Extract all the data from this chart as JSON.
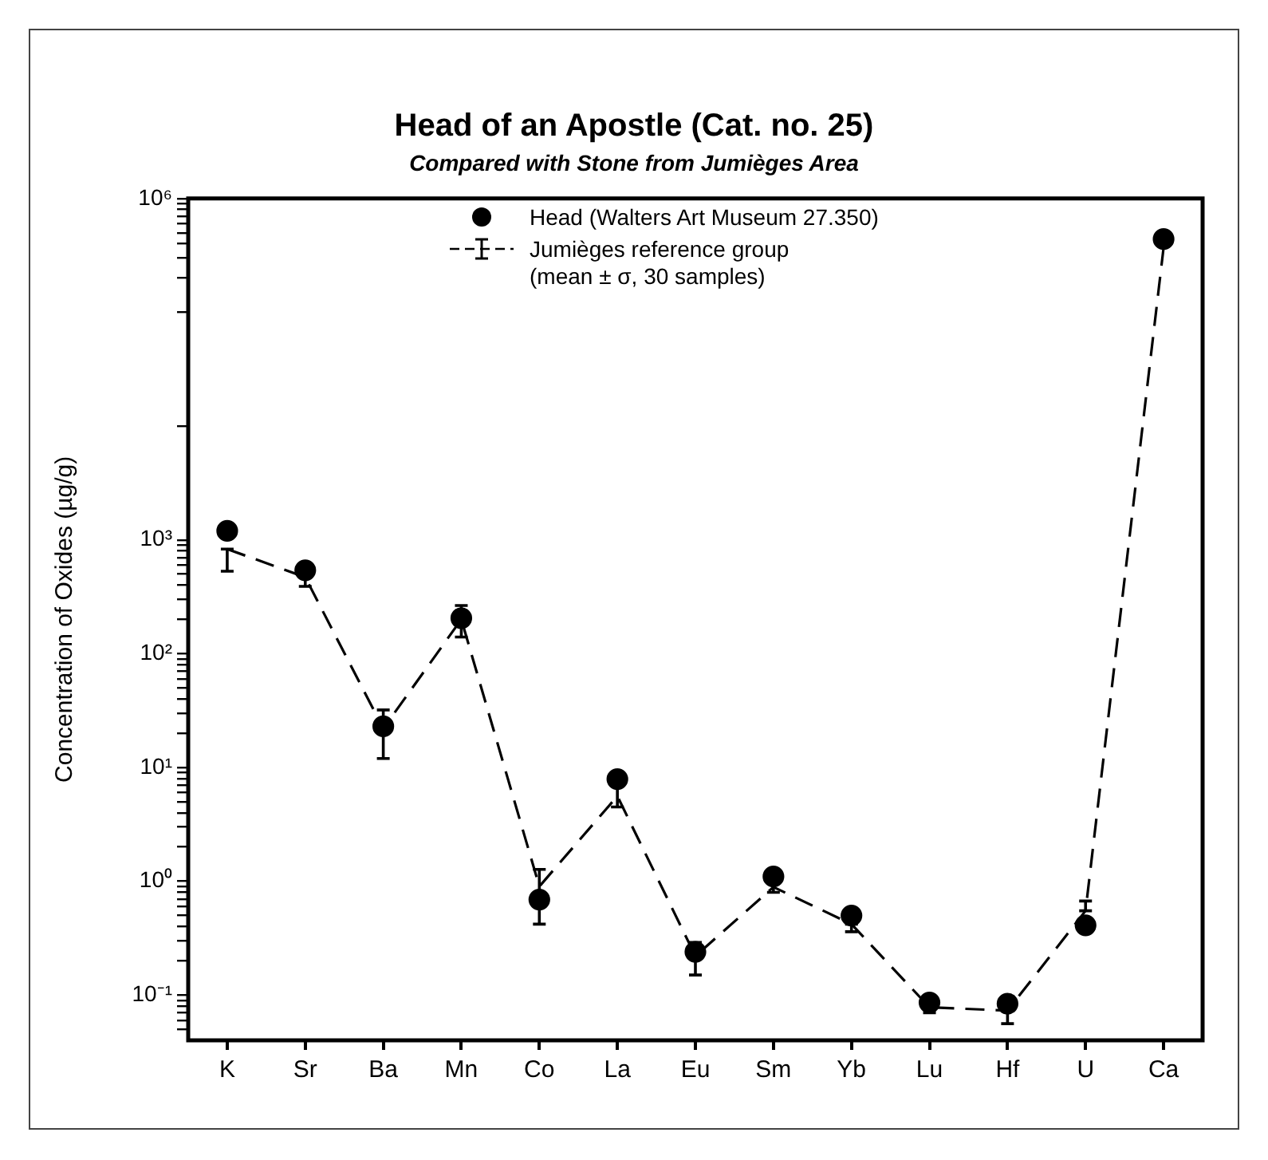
{
  "chart_data": {
    "type": "line",
    "title": "Head of an Apostle (Cat. no. 25)",
    "subtitle": "Compared with Stone from Jumièges Area",
    "ylabel": "Concentration of Oxides (µg/g)",
    "categories": [
      "K",
      "Sr",
      "Ba",
      "Mn",
      "Co",
      "La",
      "Eu",
      "Sm",
      "Yb",
      "Lu",
      "Hf",
      "U",
      "Ca"
    ],
    "series": [
      {
        "name": "Head (Walters Art Museum 27.350)",
        "type": "scatter",
        "color": "#000000",
        "marker": "circle",
        "values": [
          1200,
          540,
          23,
          205,
          0.69,
          7.9,
          0.24,
          1.1,
          0.5,
          0.086,
          0.084,
          0.41,
          440000
        ]
      },
      {
        "name": "Jumièges reference group\n(mean ± σ, 30 samples)",
        "type": "line",
        "color": "#000000",
        "marker": "none",
        "line_style": "dashed",
        "values": [
          830,
          470,
          22,
          200,
          0.9,
          5.6,
          0.22,
          0.89,
          0.42,
          0.078,
          0.073,
          0.55,
          370000
        ],
        "errors": [
          [
            530,
            830
          ],
          [
            390,
            470
          ],
          [
            12,
            32
          ],
          [
            140,
            265
          ],
          [
            0.42,
            1.27
          ],
          [
            4.5,
            7
          ],
          [
            0.15,
            0.29
          ],
          [
            0.8,
            1.0
          ],
          [
            0.36,
            0.42
          ],
          [
            0.07,
            0.078
          ],
          [
            0.056,
            0.073
          ],
          [
            0.55,
            0.67
          ],
          null
        ]
      }
    ],
    "log": true,
    "ylim": [
      0.04,
      1000000
    ],
    "yticks": [
      {
        "value": 0.05,
        "label": null
      },
      {
        "value": 0.06,
        "label": null
      },
      {
        "value": 0.07,
        "label": null
      },
      {
        "value": 0.08,
        "label": null
      },
      {
        "value": 0.09,
        "label": null
      },
      {
        "value": 0.1,
        "label": "10⁻¹"
      },
      {
        "value": 0.2,
        "label": null
      },
      {
        "value": 0.3,
        "label": null
      },
      {
        "value": 0.4,
        "label": null
      },
      {
        "value": 0.5,
        "label": null
      },
      {
        "value": 0.6,
        "label": null
      },
      {
        "value": 0.7,
        "label": null
      },
      {
        "value": 0.8,
        "label": null
      },
      {
        "value": 0.9,
        "label": null
      },
      {
        "value": 1,
        "label": "10⁰"
      },
      {
        "value": 2,
        "label": null
      },
      {
        "value": 3,
        "label": null
      },
      {
        "value": 4,
        "label": null
      },
      {
        "value": 5,
        "label": null
      },
      {
        "value": 6,
        "label": null
      },
      {
        "value": 7,
        "label": null
      },
      {
        "value": 8,
        "label": null
      },
      {
        "value": 9,
        "label": null
      },
      {
        "value": 10,
        "label": "10¹"
      },
      {
        "value": 20,
        "label": null
      },
      {
        "value": 30,
        "label": null
      },
      {
        "value": 40,
        "label": null
      },
      {
        "value": 50,
        "label": null
      },
      {
        "value": 60,
        "label": null
      },
      {
        "value": 70,
        "label": null
      },
      {
        "value": 80,
        "label": null
      },
      {
        "value": 90,
        "label": null
      },
      {
        "value": 100,
        "label": "10²"
      },
      {
        "value": 200,
        "label": null
      },
      {
        "value": 300,
        "label": null
      },
      {
        "value": 400,
        "label": null
      },
      {
        "value": 500,
        "label": null
      },
      {
        "value": 600,
        "label": null
      },
      {
        "value": 700,
        "label": null
      },
      {
        "value": 800,
        "label": null
      },
      {
        "value": 900,
        "label": null
      },
      {
        "value": 1000,
        "label": "10³"
      },
      {
        "value": 10000,
        "label": null
      },
      {
        "value": 100000,
        "label": null
      },
      {
        "value": 200000,
        "label": null
      },
      {
        "value": 300000,
        "label": null
      },
      {
        "value": 400000,
        "label": null
      },
      {
        "value": 500000,
        "label": null
      },
      {
        "value": 600000,
        "label": null
      },
      {
        "value": 700000,
        "label": null
      },
      {
        "value": 800000,
        "label": null
      },
      {
        "value": 900000,
        "label": null
      },
      {
        "value": 1000000,
        "label": "10⁶"
      }
    ],
    "legend": "top"
  }
}
